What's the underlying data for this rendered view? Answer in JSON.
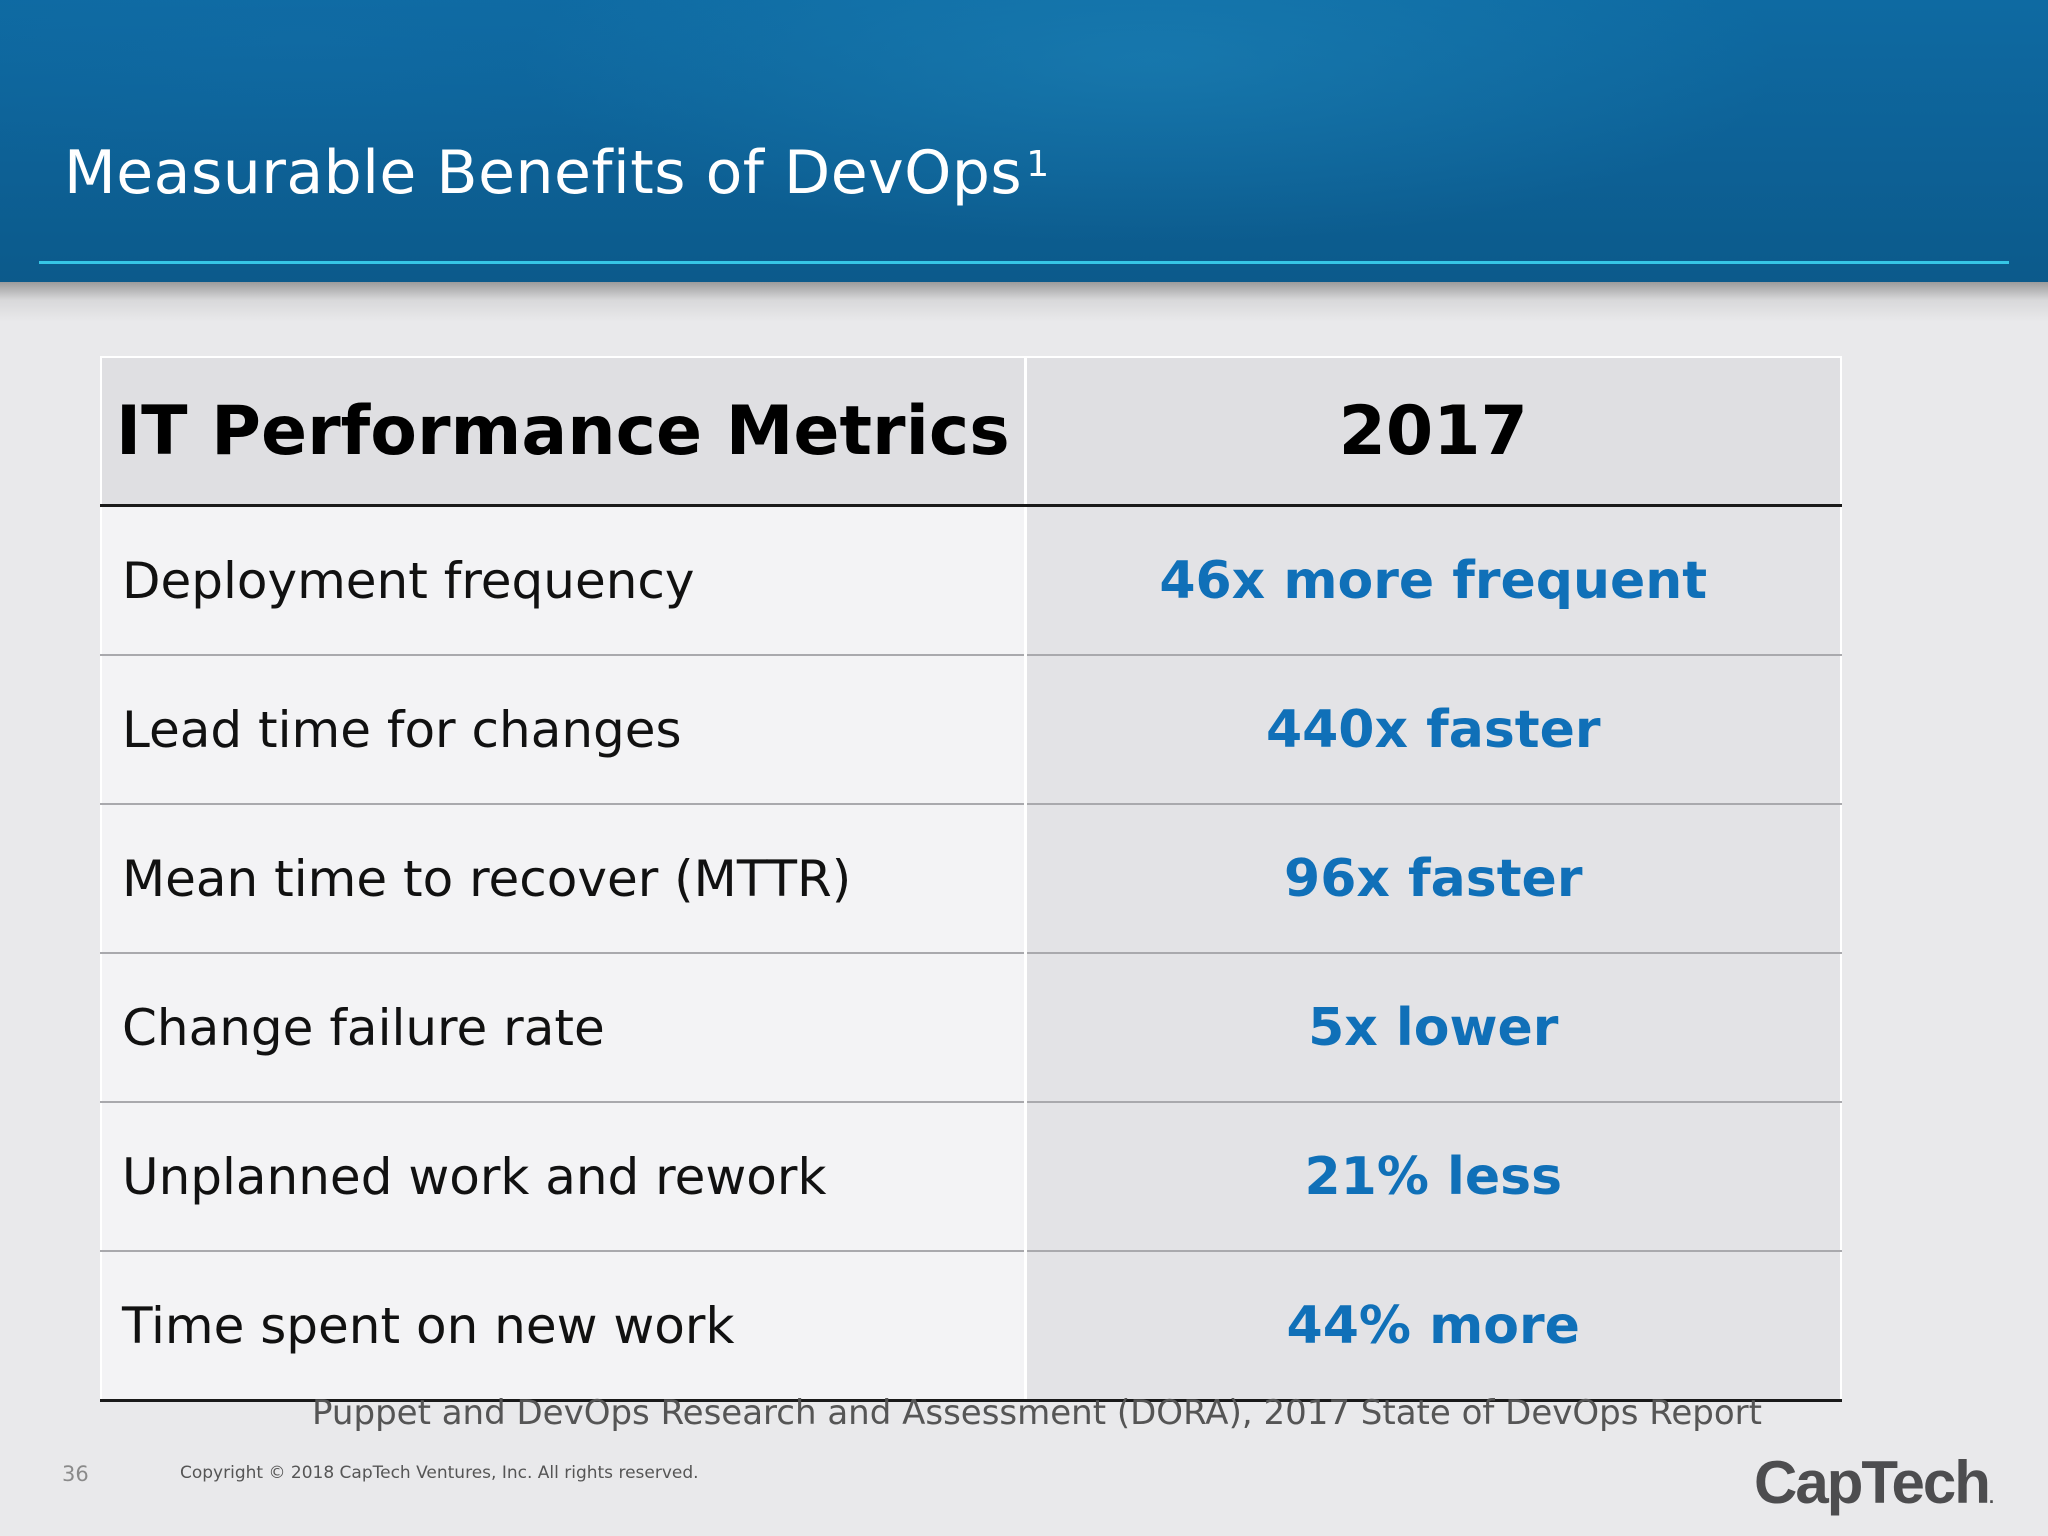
{
  "slide": {
    "title": "Measurable Benefits of DevOps",
    "title_superscript": "1",
    "page_number": "36",
    "copyright": "Copyright © 2018 CapTech Ventures, Inc. All rights reserved.",
    "logo_text": "CapTech",
    "logo_suffix": "."
  },
  "table": {
    "headers": [
      "IT Performance Metrics",
      "2017"
    ],
    "rows": [
      {
        "metric": "Deployment frequency",
        "value": "46x more frequent"
      },
      {
        "metric": "Lead time for changes",
        "value": "440x faster"
      },
      {
        "metric": "Mean time to recover (MTTR)",
        "value": "96x faster"
      },
      {
        "metric": "Change failure rate",
        "value": "5x lower"
      },
      {
        "metric": "Unplanned work and rework",
        "value": "21% less"
      },
      {
        "metric": "Time spent on new work",
        "value": "44% more"
      }
    ]
  },
  "source": "Puppet and DevOps Research and Assessment (DORA), 2017 State of DevOps Report",
  "colors": {
    "header_blue": "#0d6196",
    "accent_rule": "#36c6e6",
    "value_text": "#1070b8"
  }
}
